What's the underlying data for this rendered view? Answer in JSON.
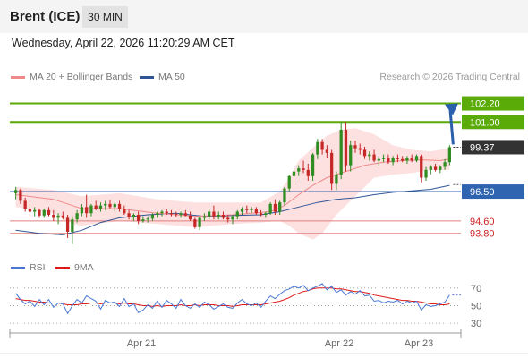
{
  "header": {
    "instrument": "Brent (ICE)",
    "timeframe": "30 MIN"
  },
  "datetime": "Wednesday, April 22, 2026 11:20:29 AM CET",
  "legend": [
    {
      "label": "MA 20 + Bollinger Bands",
      "color": "#f08a8a"
    },
    {
      "label": "MA 50",
      "color": "#2f5597"
    }
  ],
  "credit": "Research © 2026 Trading Central",
  "rsi_legend": [
    {
      "label": "RSI",
      "color": "#4a78d4"
    },
    {
      "label": "9MA",
      "color": "#dd1a1a"
    }
  ],
  "colors": {
    "up": "#2f8d22",
    "down": "#c62828",
    "ma50": "#2f5597",
    "ma20": "#f08a8a",
    "band_fill": "#fde0e0",
    "resistance": "#5aaa08",
    "support": "#2f64b0",
    "target": "#e08080",
    "current": "#333333",
    "arrow": "#2b5fac",
    "rsi": "#4a78d4",
    "rsi_ma": "#dd1a1a"
  },
  "chart_data": [
    {
      "type": "candlestick",
      "title": "",
      "ylim": [
        92.8,
        103.1
      ],
      "x_ticks": [
        "Apr 21",
        "Apr 22",
        "Apr 23"
      ],
      "levels": [
        {
          "value": 102.2,
          "label": "102.20",
          "kind": "resistance"
        },
        {
          "value": 101.0,
          "label": "101.00",
          "kind": "resistance"
        },
        {
          "value": 99.37,
          "label": "99.37",
          "kind": "current"
        },
        {
          "value": 96.5,
          "label": "96.50",
          "kind": "support"
        },
        {
          "value": 94.6,
          "label": "94.60",
          "kind": "target"
        },
        {
          "value": 93.8,
          "label": "93.80",
          "kind": "target"
        }
      ],
      "ohlc": [
        [
          96.4,
          96.8,
          96.0,
          96.6
        ],
        [
          96.6,
          96.7,
          95.7,
          95.9
        ],
        [
          95.9,
          96.1,
          95.2,
          95.4
        ],
        [
          95.4,
          95.7,
          94.9,
          95.2
        ],
        [
          95.2,
          95.5,
          94.9,
          95.3
        ],
        [
          95.3,
          95.4,
          94.8,
          94.95
        ],
        [
          94.95,
          95.4,
          94.8,
          95.3
        ],
        [
          95.3,
          95.5,
          94.9,
          95.0
        ],
        [
          95.0,
          95.3,
          94.6,
          94.8
        ],
        [
          94.8,
          95.1,
          94.4,
          94.95
        ],
        [
          94.95,
          95.2,
          94.7,
          94.8
        ],
        [
          94.8,
          95.0,
          93.5,
          93.9
        ],
        [
          93.9,
          94.9,
          93.1,
          94.7
        ],
        [
          94.7,
          95.3,
          94.5,
          95.1
        ],
        [
          95.1,
          95.7,
          94.9,
          95.5
        ],
        [
          95.5,
          96.3,
          94.8,
          95.1
        ],
        [
          95.1,
          95.7,
          94.9,
          95.6
        ],
        [
          95.6,
          95.9,
          95.3,
          95.4
        ],
        [
          95.4,
          95.8,
          95.2,
          95.6
        ],
        [
          95.6,
          95.9,
          95.3,
          95.7
        ],
        [
          95.7,
          95.95,
          95.4,
          95.5
        ],
        [
          95.5,
          95.8,
          95.2,
          95.7
        ],
        [
          95.7,
          95.9,
          95.2,
          95.4
        ],
        [
          95.4,
          95.6,
          95.0,
          95.1
        ],
        [
          95.1,
          95.3,
          94.7,
          94.85
        ],
        [
          94.85,
          95.1,
          94.6,
          95.0
        ],
        [
          95.0,
          95.2,
          94.4,
          94.6
        ],
        [
          94.6,
          94.9,
          94.5,
          94.7
        ],
        [
          94.7,
          94.9,
          94.5,
          94.75
        ],
        [
          94.75,
          95.1,
          94.6,
          95.0
        ],
        [
          95.0,
          95.2,
          94.8,
          95.1
        ],
        [
          95.1,
          95.3,
          94.9,
          95.2
        ],
        [
          95.2,
          95.4,
          95.0,
          95.1
        ],
        [
          95.1,
          95.3,
          94.9,
          95.05
        ],
        [
          95.05,
          95.2,
          94.85,
          95.0
        ],
        [
          95.0,
          95.2,
          94.8,
          95.1
        ],
        [
          95.1,
          95.3,
          94.9,
          94.95
        ],
        [
          94.95,
          95.2,
          94.6,
          94.7
        ],
        [
          94.7,
          94.8,
          94.1,
          94.2
        ],
        [
          94.2,
          94.9,
          94.0,
          94.8
        ],
        [
          94.8,
          95.1,
          94.6,
          94.9
        ],
        [
          94.9,
          95.4,
          94.7,
          95.2
        ],
        [
          95.2,
          95.6,
          94.7,
          94.9
        ],
        [
          94.9,
          95.2,
          94.7,
          95.0
        ],
        [
          95.0,
          95.2,
          94.7,
          94.8
        ],
        [
          94.8,
          95.0,
          94.5,
          94.7
        ],
        [
          94.7,
          95.0,
          94.4,
          94.9
        ],
        [
          94.9,
          95.3,
          94.7,
          95.2
        ],
        [
          95.2,
          95.5,
          95.0,
          95.4
        ],
        [
          95.4,
          95.6,
          95.1,
          95.3
        ],
        [
          95.3,
          95.5,
          95.1,
          95.4
        ],
        [
          95.4,
          95.5,
          95.0,
          95.1
        ],
        [
          95.1,
          95.3,
          94.9,
          95.0
        ],
        [
          95.0,
          95.2,
          94.8,
          95.1
        ],
        [
          95.1,
          95.8,
          95.0,
          95.7
        ],
        [
          95.7,
          96.0,
          95.0,
          95.2
        ],
        [
          95.2,
          95.9,
          95.0,
          95.8
        ],
        [
          95.8,
          96.8,
          95.6,
          96.7
        ],
        [
          96.7,
          97.6,
          96.5,
          97.5
        ],
        [
          97.5,
          98.0,
          97.1,
          97.8
        ],
        [
          97.8,
          98.2,
          97.5,
          98.0
        ],
        [
          98.0,
          98.5,
          97.7,
          97.9
        ],
        [
          97.9,
          98.3,
          97.2,
          97.5
        ],
        [
          97.5,
          99.0,
          97.2,
          98.9
        ],
        [
          98.9,
          99.9,
          98.6,
          99.7
        ],
        [
          99.7,
          99.9,
          98.9,
          99.2
        ],
        [
          99.2,
          99.5,
          98.7,
          99.0
        ],
        [
          99.0,
          99.2,
          96.6,
          97.0
        ],
        [
          97.0,
          97.8,
          96.6,
          97.6
        ],
        [
          97.6,
          101.0,
          97.3,
          100.5
        ],
        [
          100.5,
          101.0,
          97.8,
          98.2
        ],
        [
          98.2,
          99.8,
          97.8,
          99.5
        ],
        [
          99.5,
          99.8,
          99.0,
          99.3
        ],
        [
          99.3,
          99.6,
          98.9,
          99.2
        ],
        [
          99.2,
          99.4,
          98.6,
          98.8
        ],
        [
          98.8,
          99.1,
          98.5,
          98.9
        ],
        [
          98.9,
          99.2,
          98.4,
          98.5
        ],
        [
          98.5,
          98.8,
          98.2,
          98.6
        ],
        [
          98.6,
          98.9,
          98.4,
          98.7
        ],
        [
          98.7,
          98.9,
          98.3,
          98.4
        ],
        [
          98.4,
          98.8,
          98.2,
          98.7
        ],
        [
          98.7,
          98.9,
          98.4,
          98.6
        ],
        [
          98.6,
          98.8,
          98.4,
          98.5
        ],
        [
          98.5,
          98.8,
          98.3,
          98.7
        ],
        [
          98.7,
          98.9,
          98.4,
          98.5
        ],
        [
          98.5,
          98.9,
          98.4,
          98.8
        ],
        [
          98.8,
          98.9,
          97.1,
          97.4
        ],
        [
          97.4,
          98.1,
          97.2,
          97.9
        ],
        [
          97.9,
          98.2,
          97.6,
          98.1
        ],
        [
          98.1,
          98.3,
          97.8,
          97.9
        ],
        [
          97.9,
          98.2,
          97.7,
          98.1
        ],
        [
          98.1,
          98.6,
          97.9,
          98.4
        ],
        [
          98.4,
          99.5,
          98.2,
          99.37
        ]
      ],
      "ma20": [
        [
          0,
          96.3
        ],
        [
          8,
          96.0
        ],
        [
          14,
          95.4
        ],
        [
          22,
          95.4
        ],
        [
          30,
          95.1
        ],
        [
          38,
          94.9
        ],
        [
          46,
          95.0
        ],
        [
          54,
          95.2
        ],
        [
          57,
          95.6
        ],
        [
          60,
          96.3
        ],
        [
          63,
          96.9
        ],
        [
          66,
          97.4
        ],
        [
          70,
          97.8
        ],
        [
          74,
          98.2
        ],
        [
          78,
          98.4
        ],
        [
          82,
          98.5
        ],
        [
          86,
          98.55
        ],
        [
          90,
          98.5
        ],
        [
          92,
          98.6
        ]
      ],
      "band_upper": [
        [
          0,
          96.8
        ],
        [
          8,
          96.6
        ],
        [
          14,
          96.2
        ],
        [
          22,
          96.4
        ],
        [
          30,
          96.0
        ],
        [
          38,
          95.8
        ],
        [
          46,
          95.8
        ],
        [
          52,
          95.8
        ],
        [
          56,
          96.5
        ],
        [
          58,
          97.4
        ],
        [
          60,
          98.5
        ],
        [
          64,
          99.6
        ],
        [
          66,
          100.1
        ],
        [
          69,
          100.5
        ],
        [
          72,
          100.6
        ],
        [
          76,
          100.2
        ],
        [
          80,
          99.5
        ],
        [
          84,
          99.2
        ],
        [
          88,
          99.1
        ],
        [
          92,
          99.3
        ]
      ],
      "band_lower": [
        [
          0,
          95.5
        ],
        [
          8,
          95.1
        ],
        [
          12,
          94.4
        ],
        [
          14,
          94.3
        ],
        [
          22,
          94.6
        ],
        [
          30,
          94.4
        ],
        [
          38,
          94.2
        ],
        [
          46,
          94.4
        ],
        [
          52,
          94.5
        ],
        [
          56,
          94.6
        ],
        [
          58,
          94.3
        ],
        [
          60,
          93.8
        ],
        [
          63,
          93.4
        ],
        [
          65,
          93.8
        ],
        [
          68,
          95.0
        ],
        [
          72,
          96.2
        ],
        [
          76,
          97.4
        ],
        [
          80,
          97.6
        ],
        [
          84,
          97.7
        ],
        [
          88,
          97.9
        ],
        [
          92,
          97.9
        ]
      ],
      "ma50": [
        [
          0,
          94.0
        ],
        [
          5,
          93.8
        ],
        [
          10,
          93.7
        ],
        [
          14,
          94.0
        ],
        [
          18,
          94.5
        ],
        [
          22,
          94.8
        ],
        [
          28,
          95.0
        ],
        [
          34,
          95.1
        ],
        [
          40,
          94.9
        ],
        [
          46,
          94.95
        ],
        [
          52,
          95.0
        ],
        [
          56,
          95.2
        ],
        [
          60,
          95.5
        ],
        [
          64,
          95.8
        ],
        [
          68,
          96.0
        ],
        [
          72,
          96.1
        ],
        [
          76,
          96.3
        ],
        [
          80,
          96.45
        ],
        [
          84,
          96.55
        ],
        [
          88,
          96.65
        ],
        [
          92,
          96.9
        ]
      ]
    },
    {
      "type": "line",
      "title": "",
      "ylim": [
        23,
        82
      ],
      "y_ticks": [
        70,
        50,
        30
      ],
      "series": [
        {
          "name": "RSI",
          "values": [
            64,
            57,
            52,
            55,
            49,
            57,
            51,
            57,
            48,
            53,
            52,
            41,
            50,
            57,
            53,
            61,
            58,
            55,
            46,
            56,
            53,
            54,
            49,
            58,
            49,
            52,
            42,
            45,
            51,
            47,
            55,
            48,
            56,
            52,
            47,
            57,
            50,
            47,
            52,
            48,
            54,
            51,
            46,
            49,
            52,
            48,
            47,
            53,
            57,
            52,
            50,
            53,
            48,
            55,
            61,
            58,
            63,
            67,
            69,
            72,
            70,
            73,
            67,
            70,
            72,
            75,
            68,
            72,
            65,
            68,
            62,
            66,
            63,
            67,
            61,
            62,
            55,
            56,
            53,
            55,
            54,
            56,
            52,
            55,
            53,
            55,
            45,
            51,
            49,
            50,
            52,
            54,
            62
          ]
        },
        {
          "name": "9MA",
          "values": [
            58,
            57,
            56,
            56,
            55,
            54,
            54,
            53,
            53,
            53,
            52,
            51,
            51,
            51,
            52,
            52,
            53,
            53,
            52,
            53,
            53,
            53,
            52,
            53,
            52,
            52,
            51,
            50,
            50,
            49,
            50,
            49,
            50,
            50,
            50,
            51,
            50,
            50,
            51,
            50,
            51,
            51,
            51,
            50,
            50,
            50,
            49,
            50,
            51,
            51,
            51,
            51,
            51,
            52,
            53,
            54,
            55,
            57,
            59,
            62,
            64,
            66,
            67,
            69,
            70,
            70,
            70,
            70,
            69,
            69,
            68,
            67,
            66,
            66,
            65,
            64,
            62,
            61,
            60,
            59,
            58,
            57,
            56,
            56,
            55,
            55,
            54,
            53,
            52,
            52,
            51,
            51,
            52
          ]
        }
      ]
    }
  ]
}
